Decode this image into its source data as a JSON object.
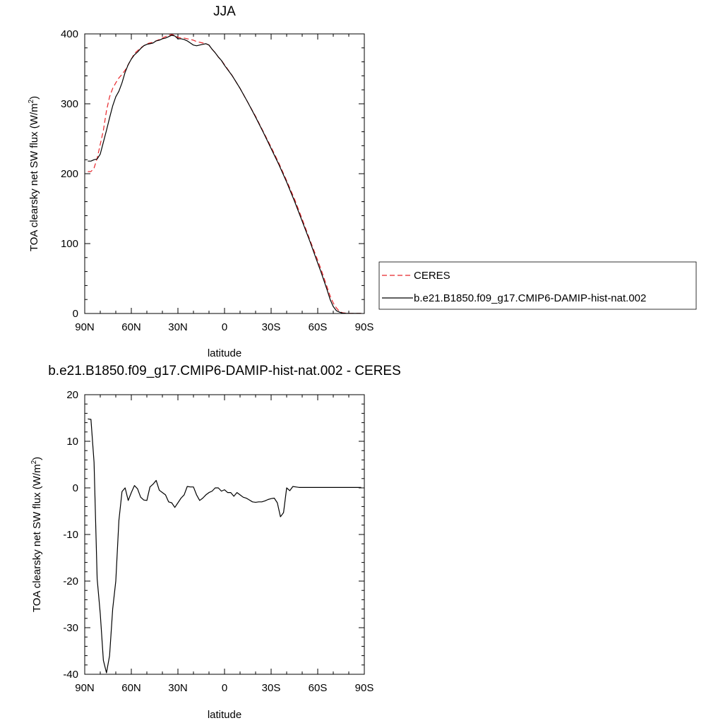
{
  "colors": {
    "ceres": "#e8262b",
    "model": "#000000"
  },
  "chart_data": [
    {
      "type": "line",
      "title": "JJA",
      "xlabel": "latitude",
      "ylabel": "TOA clearsky net SW flux (W/m",
      "ylabel_sup": "2",
      "ylabel_close": ")",
      "xlim": [
        90,
        -90
      ],
      "ylim": [
        0,
        400
      ],
      "xticks": [
        90,
        60,
        30,
        0,
        -30,
        -60,
        -90
      ],
      "xtick_labels": [
        "90N",
        "60N",
        "30N",
        "0",
        "30S",
        "60S",
        "90S"
      ],
      "yticks": [
        0,
        100,
        200,
        300,
        400
      ],
      "ytick_labels": [
        "0",
        "100",
        "200",
        "300",
        "400"
      ],
      "grid": false,
      "legend": "right",
      "series": [
        {
          "name": "CERES",
          "style": "dashed",
          "color": "#e8262b",
          "x": [
            88,
            86,
            84,
            82,
            80,
            78,
            76,
            74,
            72,
            70,
            68,
            66,
            64,
            62,
            60,
            58,
            56,
            54,
            52,
            50,
            48,
            46,
            44,
            42,
            40,
            38,
            36,
            34,
            32,
            30,
            28,
            26,
            24,
            22,
            20,
            18,
            16,
            14,
            12,
            10,
            8,
            6,
            4,
            2,
            0,
            -5,
            -10,
            -15,
            -20,
            -25,
            -30,
            -35,
            -40,
            -45,
            -50,
            -55,
            -60,
            -62,
            -64,
            -66,
            -68,
            -70,
            -72,
            -74,
            -76,
            -78,
            -80,
            -82,
            -84,
            -86,
            -88
          ],
          "y": [
            203,
            203,
            208,
            222,
            242,
            262,
            290,
            310,
            322,
            330,
            337,
            342,
            348,
            356,
            364,
            372,
            376,
            380,
            383,
            386,
            387,
            388,
            390,
            392,
            394,
            396,
            398,
            399,
            398,
            395,
            394,
            394,
            393,
            392,
            391,
            389,
            388,
            387,
            386,
            384,
            378,
            373,
            367,
            362,
            356,
            340,
            322,
            302,
            282,
            260,
            238,
            215,
            190,
            164,
            135,
            105,
            76,
            64,
            51,
            38,
            25,
            15,
            8,
            3,
            1,
            0.5,
            0.3,
            0.2,
            0.1,
            0.1,
            0.1
          ]
        },
        {
          "name": "b.e21.B1850.f09_g17.CMIP6-DAMIP-hist-nat.002",
          "style": "solid",
          "color": "#000000",
          "x": [
            88,
            86,
            84,
            82,
            80,
            78,
            76,
            74,
            72,
            70,
            68,
            66,
            64,
            62,
            60,
            58,
            56,
            54,
            52,
            50,
            48,
            46,
            44,
            42,
            40,
            38,
            36,
            34,
            32,
            30,
            28,
            26,
            24,
            22,
            20,
            18,
            16,
            14,
            12,
            10,
            8,
            6,
            4,
            2,
            0,
            -5,
            -10,
            -15,
            -20,
            -25,
            -30,
            -35,
            -40,
            -45,
            -50,
            -55,
            -60,
            -62,
            -64,
            -66,
            -68,
            -70,
            -72,
            -74,
            -76,
            -78,
            -80,
            -82,
            -84,
            -86,
            -88
          ],
          "y": [
            218,
            218,
            220,
            221,
            228,
            245,
            262,
            280,
            297,
            310,
            318,
            330,
            345,
            356,
            364,
            370,
            374,
            379,
            383,
            385,
            386,
            387,
            390,
            391,
            393,
            394,
            396,
            398,
            397,
            393,
            393,
            392,
            390,
            387,
            384,
            383,
            384,
            385,
            386,
            384,
            378,
            373,
            367,
            362,
            355,
            340,
            322,
            302,
            281,
            259,
            236,
            213,
            188,
            161,
            132,
            103,
            72,
            60,
            47,
            34,
            20,
            10,
            4,
            2,
            0.5,
            0.3,
            0.2,
            0.1,
            0.1,
            0.1,
            0.1
          ]
        }
      ]
    },
    {
      "type": "line",
      "title": "b.e21.B1850.f09_g17.CMIP6-DAMIP-hist-nat.002 - CERES",
      "xlabel": "latitude",
      "ylabel": "TOA clearsky net SW flux (W/m",
      "ylabel_sup": "2",
      "ylabel_close": ")",
      "xlim": [
        90,
        -90
      ],
      "ylim": [
        -40,
        20
      ],
      "xticks": [
        90,
        60,
        30,
        0,
        -30,
        -60,
        -90
      ],
      "xtick_labels": [
        "90N",
        "60N",
        "30N",
        "0",
        "30S",
        "60S",
        "90S"
      ],
      "yticks": [
        -40,
        -30,
        -20,
        -10,
        0,
        10,
        20
      ],
      "ytick_labels": [
        "-40",
        "-30",
        "-20",
        "-10",
        "0",
        "10",
        "20"
      ],
      "grid": false,
      "series": [
        {
          "style": "solid",
          "color": "#000000",
          "x": [
            88,
            86,
            84,
            82,
            80,
            78,
            76,
            74,
            72,
            70,
            68,
            66,
            64,
            62,
            60,
            58,
            56,
            54,
            52,
            50,
            48,
            46,
            44,
            42,
            40,
            38,
            36,
            34,
            32,
            30,
            28,
            26,
            24,
            22,
            20,
            18,
            16,
            14,
            12,
            10,
            8,
            6,
            4,
            2,
            0,
            -2,
            -4,
            -6,
            -8,
            -10,
            -12,
            -14,
            -16,
            -18,
            -20,
            -22,
            -24,
            -26,
            -28,
            -30,
            -32,
            -34,
            -36,
            -38,
            -40,
            -42,
            -44,
            -46,
            -48,
            -50,
            -52,
            -54,
            -56,
            -58,
            -60,
            -62,
            -64,
            -66,
            -68,
            -70,
            -72,
            -74,
            -76,
            -78,
            -80,
            -82,
            -84,
            -86,
            -88
          ],
          "y": [
            14.8,
            14.7,
            5.5,
            -19.5,
            -27,
            -37,
            -39.7,
            -36,
            -26,
            -20,
            -7,
            -0.8,
            0,
            -2.7,
            -1,
            0.5,
            -0.2,
            -2,
            -2.6,
            -2.7,
            0.2,
            0.8,
            1.6,
            -0.5,
            -1,
            -1.5,
            -3,
            -3.2,
            -4.2,
            -3.2,
            -2.2,
            -1.5,
            0.3,
            0.2,
            0.2,
            -1.5,
            -2.7,
            -2.2,
            -1.5,
            -1,
            -0.7,
            0,
            0,
            -0.7,
            -0.4,
            -1,
            -1,
            -1.8,
            -1,
            -1.5,
            -2,
            -2.2,
            -2.6,
            -3,
            -3.1,
            -3,
            -3,
            -2.8,
            -2.5,
            -2.3,
            -2.2,
            -3.2,
            -6.2,
            -5.3,
            0,
            -0.6,
            0.3,
            0.2,
            0.1,
            0.1,
            0.1,
            0.1,
            0.1,
            0.1,
            0.1,
            0.1,
            0.1,
            0.1,
            0.1,
            0.1,
            0.1,
            0.1,
            0.1,
            0.1,
            0.1,
            0.1,
            0.1,
            0.1,
            0.1
          ]
        }
      ]
    }
  ]
}
